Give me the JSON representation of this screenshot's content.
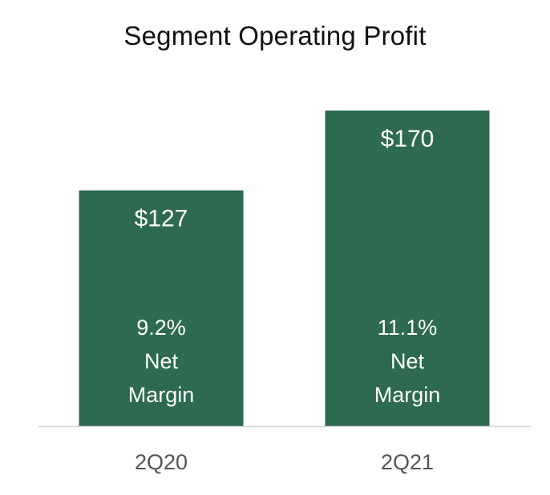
{
  "chart_data": {
    "type": "bar",
    "title": "Segment Operating Profit",
    "xlabel": "",
    "ylabel": "",
    "categories": [
      "2Q20",
      "2Q21"
    ],
    "values": [
      127,
      170
    ],
    "value_labels": [
      "$127",
      "$170"
    ],
    "margin_labels": [
      [
        "9.2%",
        "Net",
        "Margin"
      ],
      [
        "11.1%",
        "Net",
        "Margin"
      ]
    ],
    "ylim": [
      0,
      170
    ],
    "grid": false,
    "legend": "none",
    "bar_color": "#2d6a4f"
  }
}
